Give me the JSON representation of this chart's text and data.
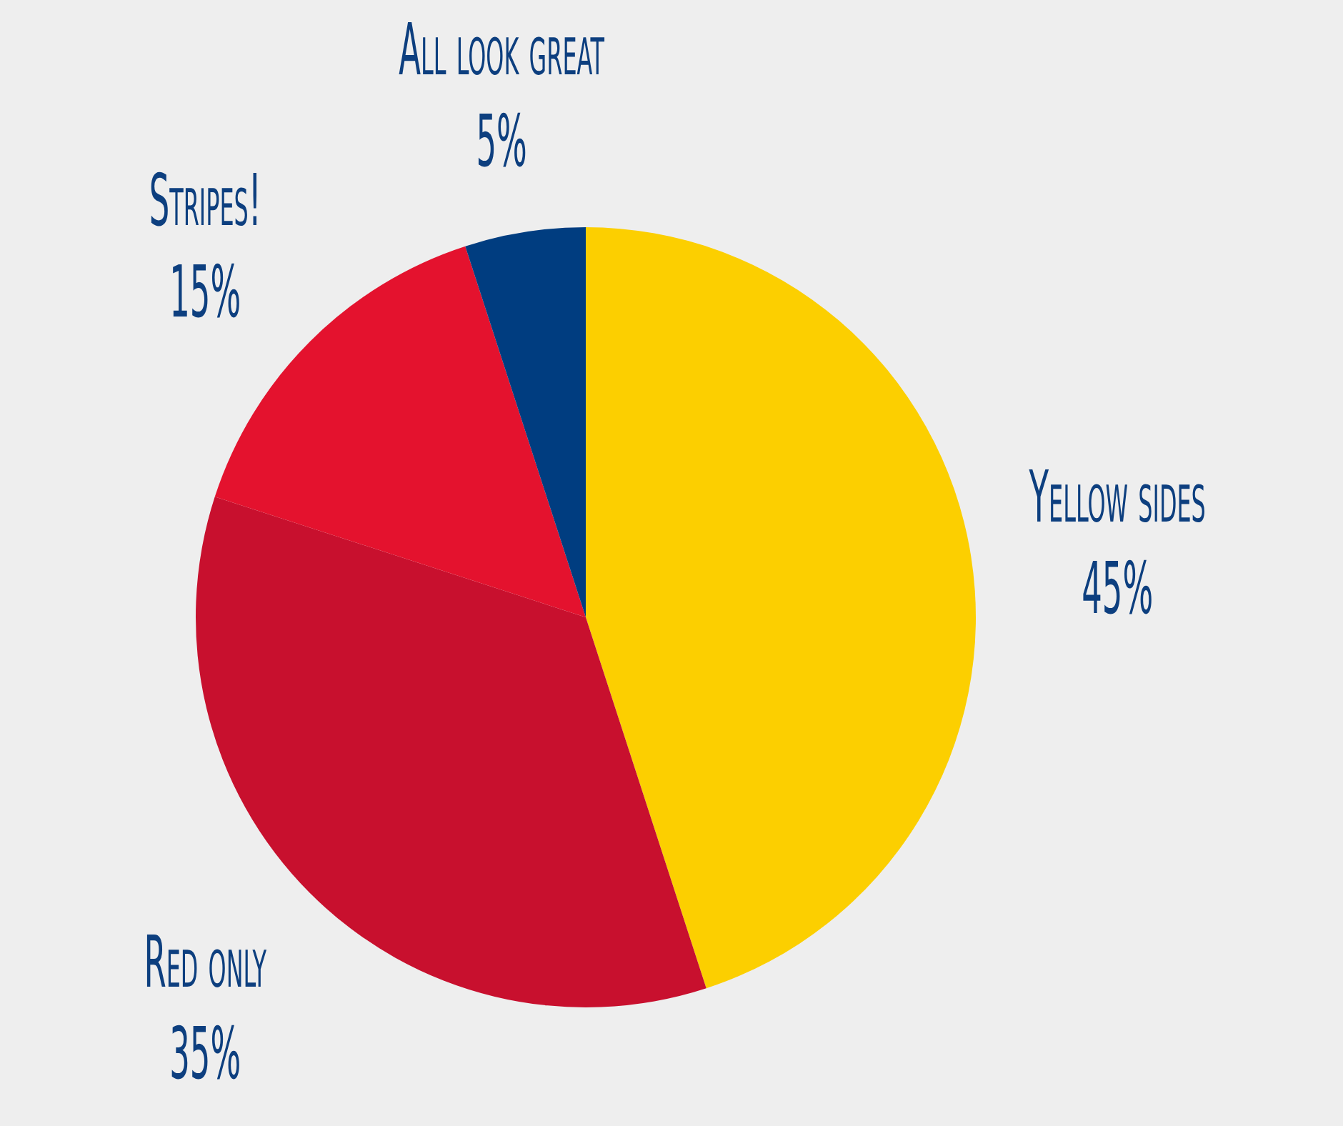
{
  "chart_data": {
    "type": "pie",
    "categories": [
      "Yellow sides",
      "Red only",
      "Stripes!",
      "All look great"
    ],
    "values": [
      45,
      35,
      15,
      5
    ],
    "colors": [
      "#fccf00",
      "#c8102e",
      "#e4122e",
      "#003d80"
    ],
    "value_labels": [
      "45%",
      "35%",
      "15%",
      "5%"
    ]
  }
}
